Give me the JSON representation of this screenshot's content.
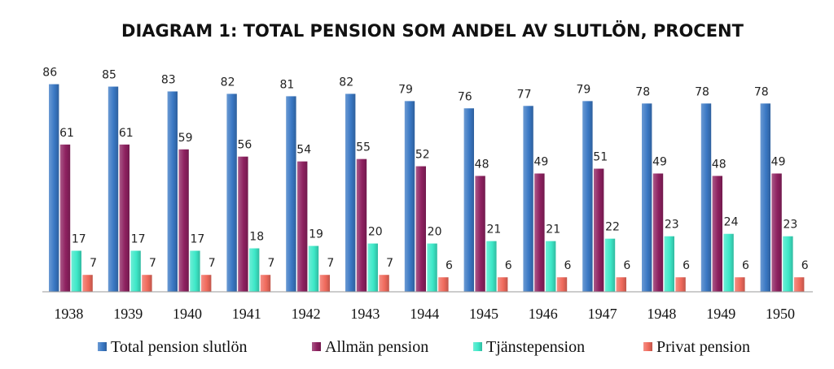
{
  "chart_data": {
    "type": "bar",
    "title": "DIAGRAM 1: TOTAL PENSION SOM ANDEL AV SLUTLÖN, PROCENT",
    "xlabel": "",
    "ylabel": "",
    "ylim": [
      0,
      100
    ],
    "grid": false,
    "legend_position": "bottom",
    "categories": [
      "1938",
      "1939",
      "1940",
      "1941",
      "1942",
      "1943",
      "1944",
      "1945",
      "1946",
      "1947",
      "1948",
      "1949",
      "1950"
    ],
    "series": [
      {
        "name": "Total pension slutlön",
        "color": "#3a78c4",
        "values": [
          86,
          85,
          83,
          82,
          81,
          82,
          79,
          76,
          77,
          79,
          78,
          78,
          78
        ]
      },
      {
        "name": "Allmän pension",
        "color": "#8e2160",
        "values": [
          61,
          61,
          59,
          56,
          54,
          55,
          52,
          48,
          49,
          51,
          49,
          48,
          49
        ]
      },
      {
        "name": "Tjänstepension",
        "color": "#3de8c8",
        "values": [
          17,
          17,
          17,
          18,
          19,
          20,
          20,
          21,
          21,
          22,
          23,
          24,
          23
        ]
      },
      {
        "name": "Privat pension",
        "color": "#f06a5c",
        "values": [
          7,
          7,
          7,
          7,
          7,
          7,
          6,
          6,
          6,
          6,
          6,
          6,
          6
        ]
      }
    ]
  }
}
